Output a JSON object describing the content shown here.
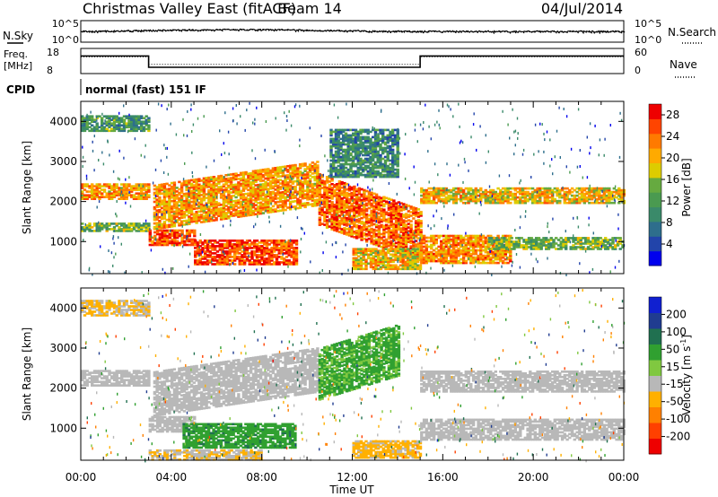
{
  "header": {
    "radar": "Christmas Valley East (fitACF)",
    "beam": "Beam 14",
    "date": "04/Jul/2014"
  },
  "nsky_panel": {
    "left_label": "N.Sky",
    "left_ticks": [
      "10^5",
      "10^0"
    ],
    "right_label": "N.Search",
    "right_ticks": [
      "10^5",
      "10^0"
    ]
  },
  "freq_panel": {
    "left_label_top": "Freq.",
    "left_label_bottom": "[MHz]",
    "left_ticks": [
      "18",
      "8"
    ],
    "right_label": "Nave",
    "right_ticks": [
      "60",
      "0"
    ]
  },
  "cpid_panel": {
    "label": "CPID",
    "mode": "normal (fast) 151 IF"
  },
  "x_axis": {
    "label": "Time UT",
    "ticks": [
      "00:00",
      "04:00",
      "08:00",
      "12:00",
      "16:00",
      "20:00",
      "00:00"
    ]
  },
  "colors": {
    "power_scale": [
      "#0000ee",
      "#2244aa",
      "#2e6e8c",
      "#3a8a6a",
      "#4a9a50",
      "#66aa40",
      "#ddcc00",
      "#ffaa00",
      "#ff7a00",
      "#ff4400",
      "#ee0000"
    ],
    "velocity_scale": [
      "#ee0000",
      "#ff4000",
      "#ff8000",
      "#ffb000",
      "#b8b8b8",
      "#80c840",
      "#30a030",
      "#207050",
      "#203c90",
      "#1020d0"
    ],
    "ground_scatter": "#b8b8b8"
  },
  "chart_data": [
    {
      "type": "line",
      "name": "sounding-parameters",
      "x": [
        0,
        3,
        3,
        15,
        15,
        24
      ],
      "series": [
        {
          "name": "Freq.",
          "unit": "MHz",
          "values": [
            15,
            15,
            10.5,
            10.5,
            15,
            15
          ]
        },
        {
          "name": "Nave",
          "values": [
            40,
            40,
            22,
            22,
            40,
            40
          ]
        }
      ],
      "xlim": [
        0,
        24
      ],
      "freq_ylim": [
        8,
        18
      ],
      "nave_ylim": [
        0,
        60
      ],
      "nsky_ylim": [
        1,
        100000
      ],
      "nsearch_ylim": [
        1,
        100000
      ]
    },
    {
      "type": "heatmap",
      "name": "power",
      "xlabel": "Time UT",
      "ylabel": "Slant Range [km]",
      "xlim": [
        0,
        24
      ],
      "ylim": [
        200,
        4500
      ],
      "y_ticks": [
        "1000",
        "2000",
        "3000",
        "4000"
      ],
      "colorbar": {
        "label": "Power [dB]",
        "ticks": [
          "28",
          "24",
          "20",
          "16",
          "12",
          "8",
          "4"
        ],
        "range": [
          0,
          30
        ]
      },
      "bands": [
        {
          "t": [
            0,
            3
          ],
          "r0": 2050,
          "r1": 2450,
          "peak": 22
        },
        {
          "t": [
            0,
            3
          ],
          "r0": 3750,
          "r1": 4150,
          "peak": 11
        },
        {
          "t": [
            0,
            3
          ],
          "r0": 1250,
          "r1": 1450,
          "peak": 14
        },
        {
          "t": [
            3,
            5
          ],
          "r0": 900,
          "r1": 1300,
          "peak": 26
        },
        {
          "t": [
            5,
            9.5
          ],
          "r0": 420,
          "r1": 1050,
          "peak": 27
        },
        {
          "t": [
            3.2,
            10.5
          ],
          "r0": 1300,
          "r1": 2400,
          "peak": 22
        },
        {
          "t": [
            10.5,
            15
          ],
          "r0": 1400,
          "r1": 2700,
          "peak": 25
        },
        {
          "t": [
            12,
            15
          ],
          "r0": 300,
          "r1": 800,
          "peak": 20
        },
        {
          "t": [
            11,
            14
          ],
          "r0": 2600,
          "r1": 3800,
          "peak": 9
        },
        {
          "t": [
            15,
            24
          ],
          "r0": 1950,
          "r1": 2350,
          "peak": 20
        },
        {
          "t": [
            15,
            19
          ],
          "r0": 450,
          "r1": 1150,
          "peak": 23
        },
        {
          "t": [
            18,
            24
          ],
          "r0": 800,
          "r1": 1100,
          "peak": 14
        }
      ]
    },
    {
      "type": "heatmap",
      "name": "velocity",
      "xlabel": "Time UT",
      "ylabel": "Slant Range [km]",
      "xlim": [
        0,
        24
      ],
      "ylim": [
        200,
        4500
      ],
      "y_ticks": [
        "1000",
        "2000",
        "3000",
        "4000"
      ],
      "colorbar": {
        "label": "Velocity [m s^-1]",
        "ticks": [
          "200",
          "100",
          "50",
          "15",
          "-15",
          "-50",
          "-100",
          "-200"
        ],
        "range": [
          -250,
          250
        ]
      },
      "bands": [
        {
          "t": [
            0,
            3
          ],
          "r0": 2050,
          "r1": 2450,
          "v": 0
        },
        {
          "t": [
            0,
            3
          ],
          "r0": 3800,
          "r1": 4200,
          "v": -60
        },
        {
          "t": [
            3,
            5
          ],
          "r0": 900,
          "r1": 1300,
          "v": 0
        },
        {
          "t": [
            4.5,
            9.5
          ],
          "r0": 500,
          "r1": 1100,
          "v": 90
        },
        {
          "t": [
            3.2,
            10.5
          ],
          "r0": 1300,
          "r1": 2400,
          "v": 0
        },
        {
          "t": [
            10.5,
            14
          ],
          "r0": 1700,
          "r1": 3000,
          "v": 70
        },
        {
          "t": [
            12,
            15
          ],
          "r0": 250,
          "r1": 700,
          "v": -70
        },
        {
          "t": [
            15,
            24
          ],
          "r0": 1900,
          "r1": 2400,
          "v": 0
        },
        {
          "t": [
            15,
            24
          ],
          "r0": 700,
          "r1": 1200,
          "v": 0
        },
        {
          "t": [
            3,
            8
          ],
          "r0": 200,
          "r1": 450,
          "v": -50
        }
      ]
    }
  ]
}
